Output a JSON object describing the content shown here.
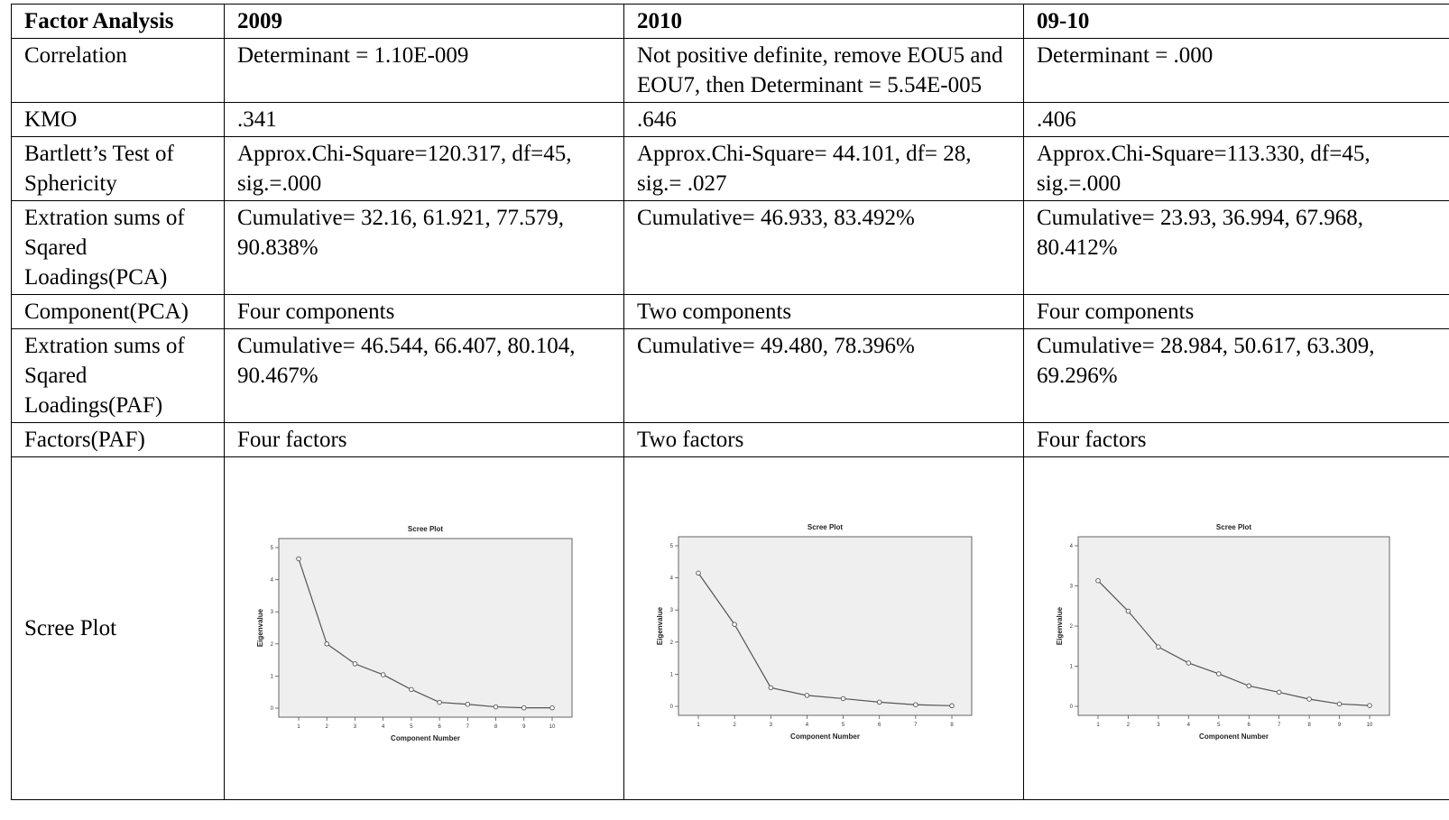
{
  "table": {
    "headers": [
      "Factor Analysis",
      "2009",
      "2010",
      "09-10"
    ],
    "rows": [
      {
        "label": "Correlation",
        "cells": [
          "Determinant = 1.10E-009",
          "Not positive definite, remove EOU5 and EOU7, then Determinant = 5.54E-005",
          "Determinant = .000"
        ]
      },
      {
        "label": "KMO",
        "cells": [
          ".341",
          ".646",
          ".406"
        ]
      },
      {
        "label": "Bartlett’s Test of Sphericity",
        "cells": [
          "Approx.Chi-Square=120.317, df=45, sig.=.000",
          "Approx.Chi-Square= 44.101, df= 28, sig.= .027",
          "Approx.Chi-Square=113.330, df=45, sig.=.000"
        ]
      },
      {
        "label": "Extration sums of Sqared Loadings(PCA)",
        "cells": [
          "Cumulative= 32.16, 61.921, 77.579, 90.838%",
          "Cumulative= 46.933, 83.492%",
          "Cumulative= 23.93, 36.994, 67.968, 80.412%"
        ]
      },
      {
        "label": "Component(PCA)",
        "cells": [
          "Four components",
          "Two  components",
          "Four components"
        ]
      },
      {
        "label": "Extration sums of Sqared Loadings(PAF)",
        "cells": [
          "Cumulative= 46.544, 66.407, 80.104, 90.467%",
          "Cumulative= 49.480, 78.396%",
          "Cumulative= 28.984, 50.617, 63.309, 69.296%"
        ]
      },
      {
        "label": "Factors(PAF)",
        "cells": [
          "Four factors",
          "Two factors",
          "Four factors"
        ]
      }
    ],
    "scree_label": "Scree Plot"
  },
  "chart_data": [
    {
      "type": "line",
      "title": "Scree Plot",
      "xlabel": "Component Number",
      "ylabel": "Eigenvalue",
      "x": [
        1,
        2,
        3,
        4,
        5,
        6,
        7,
        8,
        9,
        10
      ],
      "series": [
        {
          "values": [
            4.65,
            2.0,
            1.38,
            1.04,
            0.58,
            0.18,
            0.12,
            0.04,
            0.01,
            0.01
          ]
        }
      ],
      "ylim": [
        0,
        5
      ],
      "yticks": [
        0,
        1,
        2,
        3,
        4,
        5
      ],
      "grid": false
    },
    {
      "type": "line",
      "title": "Scree Plot",
      "xlabel": "Component Number",
      "ylabel": "Eigenvalue",
      "x": [
        1,
        2,
        3,
        4,
        5,
        6,
        7,
        8
      ],
      "series": [
        {
          "values": [
            4.15,
            2.55,
            0.58,
            0.34,
            0.24,
            0.13,
            0.05,
            0.02
          ]
        }
      ],
      "ylim": [
        0,
        5
      ],
      "yticks": [
        0,
        1,
        2,
        3,
        4,
        5
      ],
      "grid": false
    },
    {
      "type": "line",
      "title": "Scree Plot",
      "xlabel": "Component Number",
      "ylabel": "Eigenvalue",
      "x": [
        1,
        2,
        3,
        4,
        5,
        6,
        7,
        8,
        9,
        10
      ],
      "series": [
        {
          "values": [
            3.13,
            2.37,
            1.48,
            1.08,
            0.81,
            0.51,
            0.35,
            0.18,
            0.06,
            0.02
          ]
        }
      ],
      "ylim": [
        0,
        4
      ],
      "yticks": [
        0,
        1,
        2,
        3,
        4
      ],
      "grid": false
    }
  ],
  "colors": {
    "plot_background": "#efefef",
    "line": "#555555",
    "border": "#000000"
  }
}
